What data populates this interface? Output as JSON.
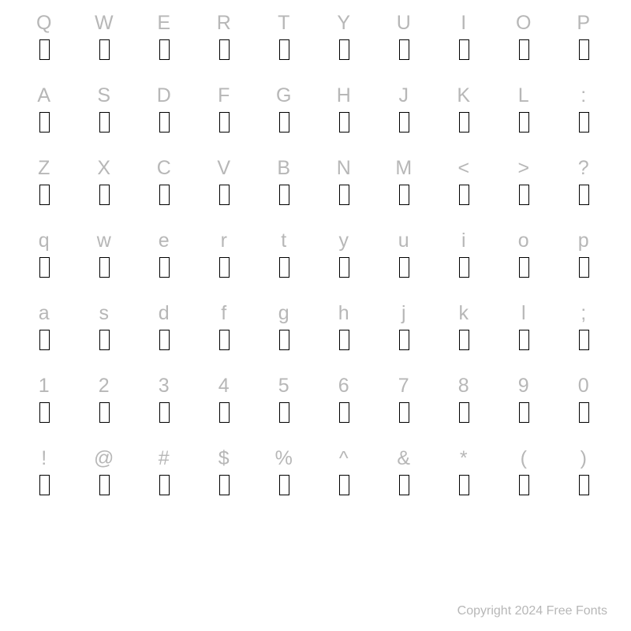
{
  "rows": [
    [
      "Q",
      "W",
      "E",
      "R",
      "T",
      "Y",
      "U",
      "I",
      "O",
      "P"
    ],
    [
      "A",
      "S",
      "D",
      "F",
      "G",
      "H",
      "J",
      "K",
      "L",
      ":"
    ],
    [
      "Z",
      "X",
      "C",
      "V",
      "B",
      "N",
      "M",
      "<",
      ">",
      "?"
    ],
    [
      "q",
      "w",
      "e",
      "r",
      "t",
      "y",
      "u",
      "i",
      "o",
      "p"
    ],
    [
      "a",
      "s",
      "d",
      "f",
      "g",
      "h",
      "j",
      "k",
      "l",
      ";"
    ],
    [
      "1",
      "2",
      "3",
      "4",
      "5",
      "6",
      "7",
      "8",
      "9",
      "0"
    ],
    [
      "!",
      "@",
      "#",
      "$",
      "%",
      "^",
      "&",
      "*",
      "(",
      ")"
    ]
  ],
  "columns": 10,
  "colors": {
    "background": "#ffffff",
    "label_text": "#b7b7b7",
    "tofu_border": "#000000",
    "copyright_text": "#b7b7b7"
  },
  "typography": {
    "label_fontsize": 25,
    "copyright_fontsize": 16,
    "font_family": "Segoe UI, Lucida Sans, Arial, sans-serif"
  },
  "copyright": "Copyright 2024 Free Fonts"
}
